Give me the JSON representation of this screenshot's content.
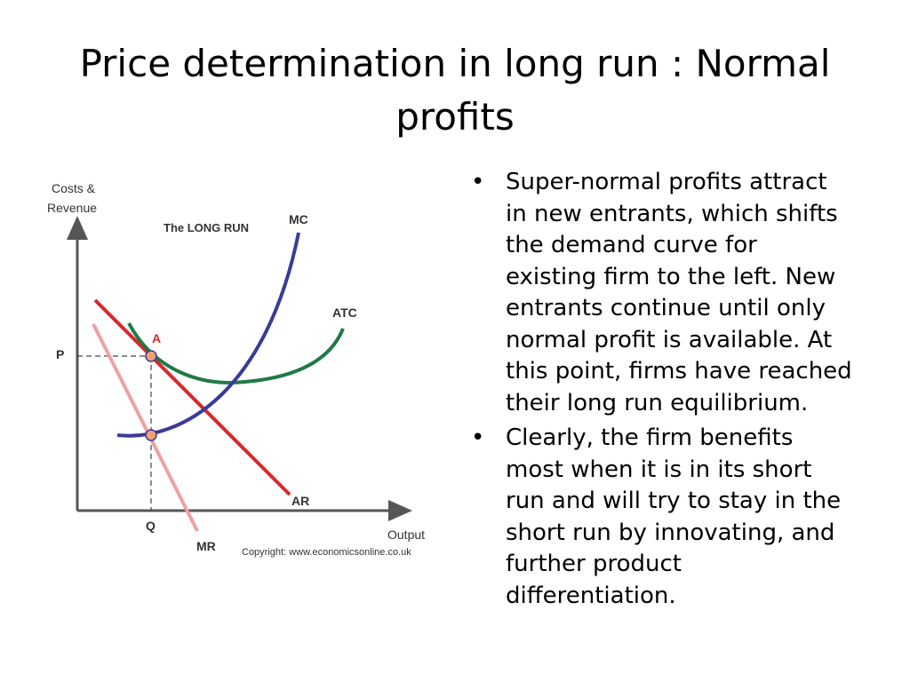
{
  "slide": {
    "title": "Price determination in long run : Normal profits",
    "bullets": [
      "Super-normal profits attract in new entrants, which shifts the demand curve for existing firm to the left. New entrants continue until only normal profit is available. At this point, firms have reached their long run equilibrium.",
      "Clearly, the firm benefits most when it is in its short run and will try to stay in the short run by innovating, and further product differentiation."
    ]
  },
  "diagram": {
    "y_axis_label": [
      "Costs &",
      "Revenue"
    ],
    "x_axis_label": "Output",
    "heading": "The LONG RUN",
    "curves": {
      "mc": "MC",
      "atc": "ATC",
      "ar": "AR",
      "mr": "MR"
    },
    "points": {
      "p": "P",
      "q": "Q",
      "a": "A"
    },
    "copyright": "Copyright: www.economicsonline.co.uk"
  }
}
